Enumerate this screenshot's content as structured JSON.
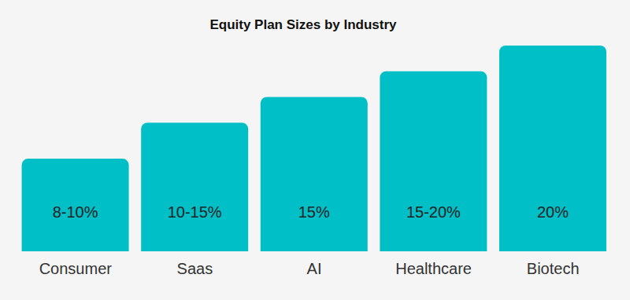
{
  "chart_data": {
    "type": "bar",
    "title": "Equity Plan Sizes by Industry",
    "categories": [
      "Consumer",
      "Saas",
      "AI",
      "Healthcare",
      "Biotech"
    ],
    "values": [
      9,
      12.5,
      15,
      17.5,
      20
    ],
    "value_labels": [
      "8-10%",
      "10-15%",
      "15%",
      "15-20%",
      "20%"
    ],
    "color": "#00bfc6",
    "ylim": [
      0,
      20
    ],
    "grid": false,
    "data_labels": true,
    "tick_labels": "x"
  }
}
